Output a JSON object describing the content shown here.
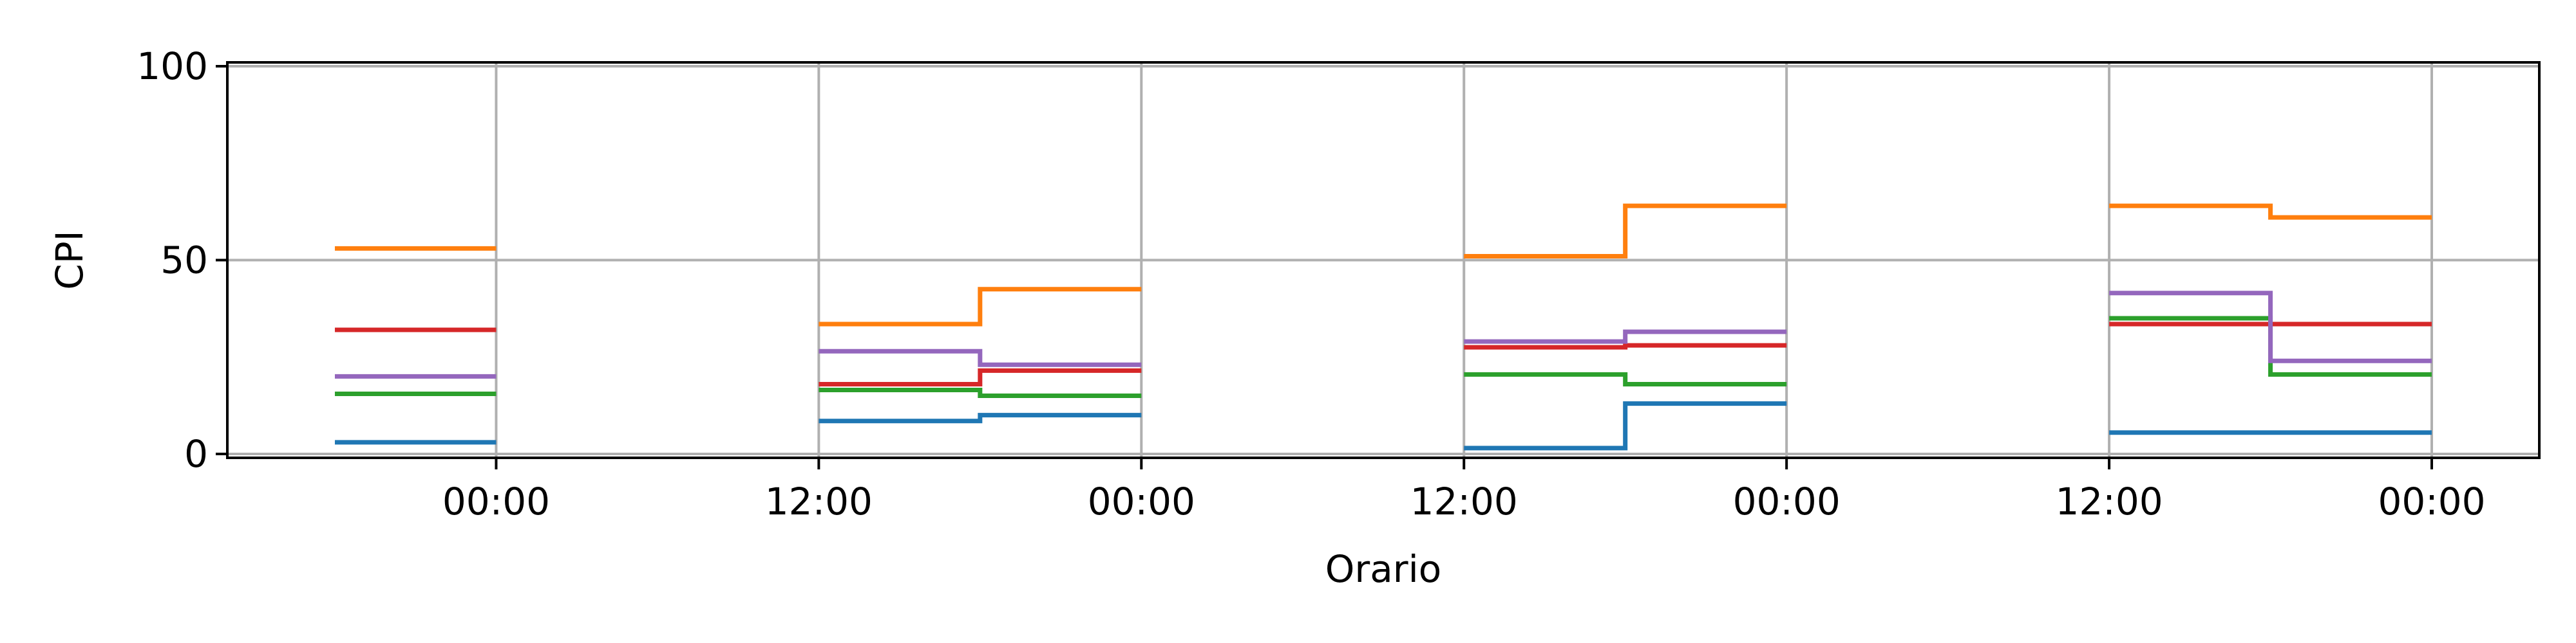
{
  "chart_data": {
    "type": "line",
    "title": "",
    "xlabel": "Orario",
    "ylabel": "CPI",
    "x_tick_labels": [
      "00:00",
      "12:00",
      "00:00",
      "12:00",
      "00:00",
      "12:00",
      "00:00"
    ],
    "x_ticks_hours": [
      0,
      12,
      24,
      36,
      48,
      60,
      72
    ],
    "xlim_hours": [
      -10,
      76
    ],
    "y_ticks": [
      0,
      50,
      100
    ],
    "y_tick_labels": [
      "0",
      "50",
      "100"
    ],
    "ylim": [
      -1,
      101
    ],
    "grid": true,
    "step": "post",
    "series": [
      {
        "color": "#1f77b4",
        "segments": [
          {
            "x": [
              -6,
              0
            ],
            "y": [
              3,
              3
            ]
          },
          {
            "x": [
              12,
              18,
              24
            ],
            "y": [
              8.5,
              10,
              10
            ]
          },
          {
            "x": [
              36,
              42,
              48
            ],
            "y": [
              1.5,
              13,
              13
            ]
          },
          {
            "x": [
              60,
              66,
              72
            ],
            "y": [
              5.5,
              5.5,
              5.5
            ]
          }
        ]
      },
      {
        "color": "#ff7f0e",
        "segments": [
          {
            "x": [
              -6,
              0
            ],
            "y": [
              53,
              53
            ]
          },
          {
            "x": [
              12,
              18,
              24
            ],
            "y": [
              33.5,
              42.5,
              42.5
            ]
          },
          {
            "x": [
              36,
              42,
              48
            ],
            "y": [
              51,
              64,
              64
            ]
          },
          {
            "x": [
              60,
              66,
              72
            ],
            "y": [
              64,
              61,
              61
            ]
          }
        ]
      },
      {
        "color": "#2ca02c",
        "segments": [
          {
            "x": [
              -6,
              0
            ],
            "y": [
              15.5,
              15.5
            ]
          },
          {
            "x": [
              12,
              18,
              24
            ],
            "y": [
              16.5,
              15,
              15
            ]
          },
          {
            "x": [
              36,
              42,
              48
            ],
            "y": [
              20.5,
              18,
              18
            ]
          },
          {
            "x": [
              60,
              66,
              72
            ],
            "y": [
              35,
              20.5,
              20.5
            ]
          }
        ]
      },
      {
        "color": "#d62728",
        "segments": [
          {
            "x": [
              -6,
              0
            ],
            "y": [
              32,
              32
            ]
          },
          {
            "x": [
              12,
              18,
              24
            ],
            "y": [
              18,
              21.5,
              21.5
            ]
          },
          {
            "x": [
              36,
              42,
              48
            ],
            "y": [
              27.5,
              28,
              28
            ]
          },
          {
            "x": [
              60,
              66,
              72
            ],
            "y": [
              33.5,
              33.5,
              33.5
            ]
          }
        ]
      },
      {
        "color": "#9467bd",
        "segments": [
          {
            "x": [
              -6,
              0
            ],
            "y": [
              20,
              20
            ]
          },
          {
            "x": [
              12,
              18,
              24
            ],
            "y": [
              26.5,
              23,
              23
            ]
          },
          {
            "x": [
              36,
              42,
              48
            ],
            "y": [
              29,
              31.5,
              31.5
            ]
          },
          {
            "x": [
              60,
              66,
              72
            ],
            "y": [
              41.5,
              24,
              24
            ]
          }
        ]
      }
    ]
  }
}
